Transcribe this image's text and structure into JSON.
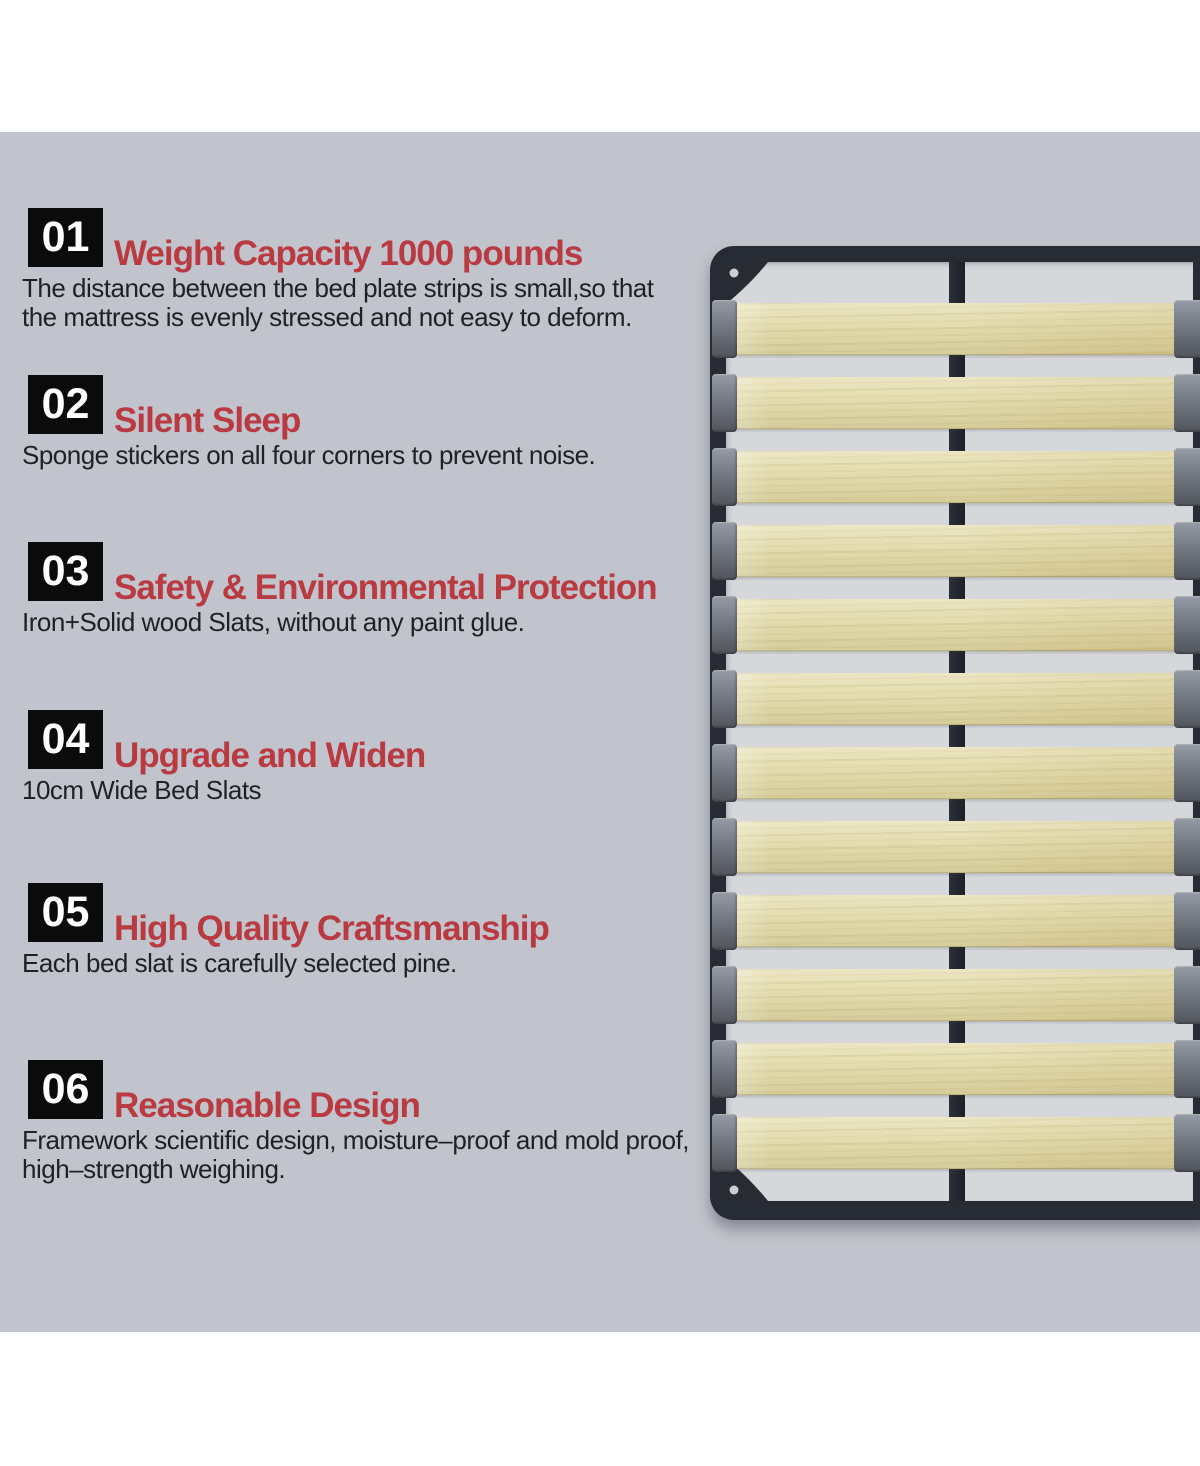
{
  "features": [
    {
      "number": "01",
      "title": "Weight Capacity 1000 pounds",
      "description": "The distance between the bed plate strips is small,so that the mattress is evenly stressed and not easy to deform."
    },
    {
      "number": "02",
      "title": "Silent Sleep",
      "description": "Sponge stickers on all four corners to prevent noise."
    },
    {
      "number": "03",
      "title": "Safety & Environmental Protection",
      "description": "Iron+Solid wood Slats, without any paint glue."
    },
    {
      "number": "04",
      "title": "Upgrade and Widen",
      "description": "10cm Wide Bed Slats"
    },
    {
      "number": "05",
      "title": "High Quality Craftsmanship",
      "description": "Each bed slat is carefully selected pine."
    },
    {
      "number": "06",
      "title": "Reasonable Design",
      "description": "Framework scientific design, moisture–proof and mold proof, high–strength weighing."
    }
  ],
  "illustration": {
    "slat_count": 12,
    "frame_color": "#272b34",
    "slat_wood_color": "#e3dcae",
    "slat_holder_color": "#70757d",
    "interior_color": "#d5d7db"
  },
  "colors": {
    "page_background": "#ffffff",
    "canvas_background": "#c1c4cc",
    "heading_red": "#b93a40",
    "number_box_black": "#0b0b0c",
    "body_text": "#1e2126"
  }
}
